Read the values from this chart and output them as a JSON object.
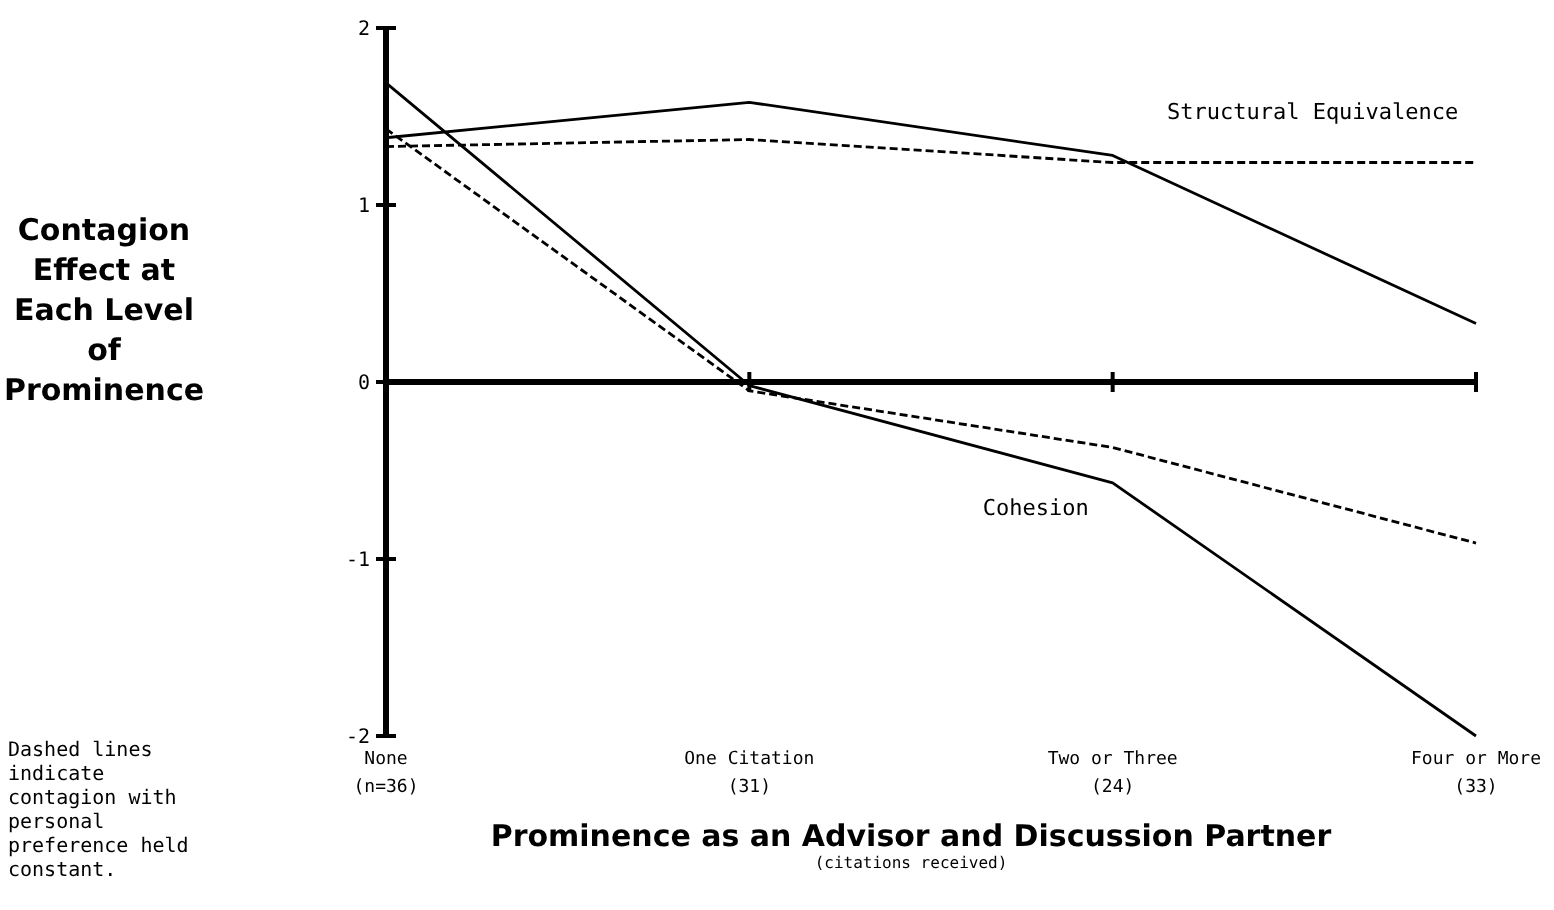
{
  "chart_data": {
    "type": "line",
    "ylabel": "Contagion Effect at Each Level of Prominence",
    "xlabel": "Prominence as an Advisor and Discussion Partner",
    "annotations": [
      "(citations received)",
      "Dashed lines indicate contagion with personal preference held constant."
    ],
    "categories": [
      "None\n(n=36)",
      "One Citation\n(31)",
      "Two or Three\n(24)",
      "Four or More\n(33)"
    ],
    "ylim": [
      -2,
      2
    ],
    "yticks": [
      {
        "value": -2,
        "label": "-2"
      },
      {
        "value": -1,
        "label": "-1"
      },
      0,
      1,
      2
    ],
    "ref_lines": [
      {
        "axis": "y",
        "value": 0,
        "color": "#000000"
      }
    ],
    "series": [
      {
        "name": "Structural Equivalence",
        "color": "#000000",
        "line_style": "solid",
        "values": [
          1.38,
          1.58,
          1.28,
          0.33
        ]
      },
      {
        "color": "#000000",
        "line_style": "dashed",
        "values": [
          1.33,
          1.37,
          1.24,
          1.24
        ]
      },
      {
        "name": "Cohesion",
        "color": "#000000",
        "line_style": "solid",
        "values": [
          1.69,
          -0.02,
          -0.57,
          -2.0
        ]
      },
      {
        "color": "#000000",
        "line_style": "dashed",
        "values": [
          1.43,
          -0.05,
          -0.37,
          -0.91
        ]
      }
    ],
    "grid": false,
    "marker": "none"
  }
}
